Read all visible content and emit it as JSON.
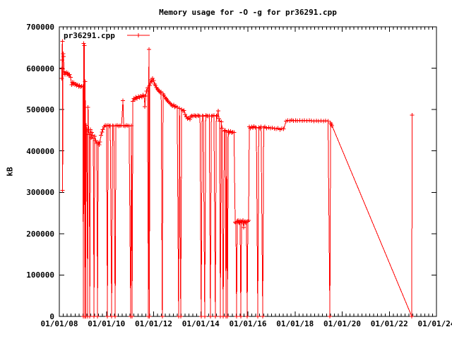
{
  "title": "Memory usage for -O -g for pr36291.cpp",
  "legend": {
    "label": "pr36291.cpp"
  },
  "y_axis": {
    "label": "kB",
    "tick_labels": [
      "0",
      "100000",
      "200000",
      "300000",
      "400000",
      "500000",
      "600000",
      "700000"
    ]
  },
  "x_axis": {
    "tick_labels": [
      "01/01/08",
      "01/01/10",
      "01/01/12",
      "01/01/14",
      "01/01/16",
      "01/01/18",
      "01/01/20",
      "01/01/22",
      "01/01/24"
    ]
  },
  "colors": {
    "series": "#ff0000",
    "axis": "#000000",
    "background": "#ffffff",
    "text": "#000000"
  },
  "chart_data": {
    "type": "line",
    "title": "Memory usage for -O -g for pr36291.cpp",
    "xlabel": "",
    "ylabel": "kB",
    "x_unit": "decimal_year",
    "xlim": [
      2008,
      2024
    ],
    "ylim": [
      0,
      700000
    ],
    "grid": false,
    "legend_position": "top-left",
    "marker": "plus",
    "series": [
      {
        "name": "pr36291.cpp",
        "color": "#ff0000",
        "points": [
          [
            2008.1,
            575000
          ],
          [
            2008.11,
            598000
          ],
          [
            2008.12,
            620000
          ],
          [
            2008.13,
            665000
          ],
          [
            2008.14,
            305000
          ],
          [
            2008.15,
            598000
          ],
          [
            2008.16,
            635000
          ],
          [
            2008.18,
            628000
          ],
          [
            2008.2,
            592000
          ],
          [
            2008.22,
            588000
          ],
          [
            2008.24,
            585000
          ],
          [
            2008.3,
            590000
          ],
          [
            2008.33,
            585000
          ],
          [
            2008.36,
            588000
          ],
          [
            2008.4,
            582000
          ],
          [
            2008.44,
            585000
          ],
          [
            2008.48,
            578000
          ],
          [
            2008.52,
            560000
          ],
          [
            2008.55,
            566000
          ],
          [
            2008.58,
            562000
          ],
          [
            2008.62,
            565000
          ],
          [
            2008.66,
            560000
          ],
          [
            2008.7,
            562000
          ],
          [
            2008.74,
            558000
          ],
          [
            2008.78,
            560000
          ],
          [
            2008.82,
            556000
          ],
          [
            2008.86,
            558000
          ],
          [
            2008.9,
            555000
          ],
          [
            2008.95,
            557000
          ],
          [
            2009.0,
            556000
          ],
          [
            2009.02,
            0
          ],
          [
            2009.04,
            660000
          ],
          [
            2009.06,
            655000
          ],
          [
            2009.08,
            0
          ],
          [
            2009.1,
            568000
          ],
          [
            2009.12,
            0
          ],
          [
            2009.14,
            462000
          ],
          [
            2009.17,
            452000
          ],
          [
            2009.2,
            0
          ],
          [
            2009.22,
            505000
          ],
          [
            2009.24,
            448000
          ],
          [
            2009.27,
            440000
          ],
          [
            2009.29,
            0
          ],
          [
            2009.32,
            452000
          ],
          [
            2009.35,
            432000
          ],
          [
            2009.38,
            445000
          ],
          [
            2009.41,
            438000
          ],
          [
            2009.44,
            430000
          ],
          [
            2009.47,
            0
          ],
          [
            2009.5,
            435000
          ],
          [
            2009.55,
            425000
          ],
          [
            2009.59,
            418000
          ],
          [
            2009.62,
            0
          ],
          [
            2009.65,
            420000
          ],
          [
            2009.69,
            415000
          ],
          [
            2009.72,
            422000
          ],
          [
            2009.77,
            438000
          ],
          [
            2009.81,
            446000
          ],
          [
            2009.85,
            452000
          ],
          [
            2009.9,
            458000
          ],
          [
            2009.95,
            462000
          ],
          [
            2010.0,
            461000
          ],
          [
            2010.04,
            0
          ],
          [
            2010.07,
            462000
          ],
          [
            2010.12,
            460000
          ],
          [
            2010.16,
            461000
          ],
          [
            2010.22,
            0
          ],
          [
            2010.26,
            461000
          ],
          [
            2010.31,
            460000
          ],
          [
            2010.37,
            0
          ],
          [
            2010.4,
            461000
          ],
          [
            2010.46,
            462000
          ],
          [
            2010.52,
            460000
          ],
          [
            2010.58,
            461000
          ],
          [
            2010.64,
            462000
          ],
          [
            2010.7,
            522000
          ],
          [
            2010.73,
            461000
          ],
          [
            2010.78,
            460000
          ],
          [
            2010.84,
            462000
          ],
          [
            2010.9,
            461000
          ],
          [
            2010.96,
            460000
          ],
          [
            2011.03,
            0
          ],
          [
            2011.06,
            461000
          ],
          [
            2011.09,
            0
          ],
          [
            2011.12,
            520000
          ],
          [
            2011.16,
            527000
          ],
          [
            2011.2,
            524000
          ],
          [
            2011.25,
            530000
          ],
          [
            2011.3,
            527000
          ],
          [
            2011.35,
            532000
          ],
          [
            2011.4,
            529000
          ],
          [
            2011.45,
            533000
          ],
          [
            2011.5,
            530000
          ],
          [
            2011.55,
            535000
          ],
          [
            2011.6,
            532000
          ],
          [
            2011.63,
            507000
          ],
          [
            2011.66,
            533000
          ],
          [
            2011.7,
            545000
          ],
          [
            2011.74,
            552000
          ],
          [
            2011.78,
            0
          ],
          [
            2011.8,
            645000
          ],
          [
            2011.82,
            0
          ],
          [
            2011.84,
            558000
          ],
          [
            2011.87,
            565000
          ],
          [
            2011.9,
            572000
          ],
          [
            2011.93,
            568000
          ],
          [
            2011.96,
            575000
          ],
          [
            2012.0,
            570000
          ],
          [
            2012.04,
            562000
          ],
          [
            2012.08,
            558000
          ],
          [
            2012.12,
            553000
          ],
          [
            2012.16,
            550000
          ],
          [
            2012.2,
            547000
          ],
          [
            2012.24,
            544000
          ],
          [
            2012.28,
            541000
          ],
          [
            2012.32,
            543000
          ],
          [
            2012.37,
            0
          ],
          [
            2012.4,
            538000
          ],
          [
            2012.44,
            534000
          ],
          [
            2012.48,
            530000
          ],
          [
            2012.52,
            527000
          ],
          [
            2012.56,
            524000
          ],
          [
            2012.6,
            521000
          ],
          [
            2012.65,
            518000
          ],
          [
            2012.7,
            515000
          ],
          [
            2012.75,
            512000
          ],
          [
            2012.8,
            509000
          ],
          [
            2012.85,
            511000
          ],
          [
            2012.9,
            506000
          ],
          [
            2012.95,
            508000
          ],
          [
            2013.0,
            505000
          ],
          [
            2013.06,
            0
          ],
          [
            2013.1,
            503000
          ],
          [
            2013.15,
            0
          ],
          [
            2013.19,
            500000
          ],
          [
            2013.24,
            497000
          ],
          [
            2013.29,
            498000
          ],
          [
            2013.34,
            488000
          ],
          [
            2013.39,
            482000
          ],
          [
            2013.44,
            478000
          ],
          [
            2013.49,
            480000
          ],
          [
            2013.54,
            476000
          ],
          [
            2013.58,
            483000
          ],
          [
            2013.62,
            485000
          ],
          [
            2013.67,
            484000
          ],
          [
            2013.72,
            486000
          ],
          [
            2013.77,
            485000
          ],
          [
            2013.82,
            484000
          ],
          [
            2013.87,
            486000
          ],
          [
            2013.92,
            485000
          ],
          [
            2013.97,
            484000
          ],
          [
            2014.02,
            0
          ],
          [
            2014.06,
            485000
          ],
          [
            2014.11,
            484000
          ],
          [
            2014.17,
            0
          ],
          [
            2014.21,
            486000
          ],
          [
            2014.26,
            485000
          ],
          [
            2014.31,
            484000
          ],
          [
            2014.36,
            485000
          ],
          [
            2014.41,
            0
          ],
          [
            2014.45,
            484000
          ],
          [
            2014.5,
            485000
          ],
          [
            2014.56,
            486000
          ],
          [
            2014.62,
            0
          ],
          [
            2014.66,
            485000
          ],
          [
            2014.7,
            484000
          ],
          [
            2014.74,
            497000
          ],
          [
            2014.77,
            478000
          ],
          [
            2014.8,
            472000
          ],
          [
            2014.83,
            0
          ],
          [
            2014.87,
            470000
          ],
          [
            2014.9,
            455000
          ],
          [
            2014.95,
            0
          ],
          [
            2015.0,
            448000
          ],
          [
            2015.04,
            450000
          ],
          [
            2015.07,
            0
          ],
          [
            2015.1,
            446000
          ],
          [
            2015.13,
            0
          ],
          [
            2015.17,
            448000
          ],
          [
            2015.21,
            445000
          ],
          [
            2015.26,
            447000
          ],
          [
            2015.31,
            444000
          ],
          [
            2015.36,
            446000
          ],
          [
            2015.41,
            445000
          ],
          [
            2015.46,
            228000
          ],
          [
            2015.49,
            225000
          ],
          [
            2015.52,
            0
          ],
          [
            2015.55,
            230000
          ],
          [
            2015.58,
            232000
          ],
          [
            2015.61,
            228000
          ],
          [
            2015.64,
            226000
          ],
          [
            2015.67,
            231000
          ],
          [
            2015.7,
            0
          ],
          [
            2015.73,
            230000
          ],
          [
            2015.76,
            228000
          ],
          [
            2015.79,
            232000
          ],
          [
            2015.82,
            215000
          ],
          [
            2015.85,
            228000
          ],
          [
            2015.88,
            230000
          ],
          [
            2015.91,
            226000
          ],
          [
            2015.94,
            229000
          ],
          [
            2015.97,
            0
          ],
          [
            2016.0,
            230000
          ],
          [
            2016.03,
            232000
          ],
          [
            2016.06,
            458000
          ],
          [
            2016.11,
            455000
          ],
          [
            2016.16,
            458000
          ],
          [
            2016.21,
            456000
          ],
          [
            2016.26,
            459000
          ],
          [
            2016.31,
            457000
          ],
          [
            2016.36,
            456000
          ],
          [
            2016.42,
            0
          ],
          [
            2016.46,
            457000
          ],
          [
            2016.51,
            455000
          ],
          [
            2016.56,
            458000
          ],
          [
            2016.63,
            0
          ],
          [
            2016.67,
            456000
          ],
          [
            2016.72,
            458000
          ],
          [
            2016.8,
            455000
          ],
          [
            2016.88,
            457000
          ],
          [
            2016.96,
            455000
          ],
          [
            2017.04,
            456000
          ],
          [
            2017.12,
            454000
          ],
          [
            2017.2,
            453000
          ],
          [
            2017.28,
            455000
          ],
          [
            2017.36,
            452000
          ],
          [
            2017.44,
            454000
          ],
          [
            2017.52,
            453000
          ],
          [
            2017.62,
            472000
          ],
          [
            2017.7,
            474000
          ],
          [
            2017.78,
            473000
          ],
          [
            2017.86,
            475000
          ],
          [
            2017.94,
            473000
          ],
          [
            2018.02,
            474000
          ],
          [
            2018.1,
            473000
          ],
          [
            2018.2,
            474000
          ],
          [
            2018.3,
            473000
          ],
          [
            2018.4,
            474000
          ],
          [
            2018.5,
            473000
          ],
          [
            2018.6,
            474000
          ],
          [
            2018.7,
            473000
          ],
          [
            2018.8,
            472000
          ],
          [
            2018.9,
            473000
          ],
          [
            2019.0,
            472000
          ],
          [
            2019.1,
            473000
          ],
          [
            2019.2,
            472000
          ],
          [
            2019.3,
            473000
          ],
          [
            2019.4,
            472000
          ],
          [
            2019.48,
            0
          ],
          [
            2019.51,
            468000
          ],
          [
            2019.54,
            464000
          ],
          [
            2019.57,
            461000
          ],
          [
            2022.95,
            0
          ],
          [
            2022.97,
            487000
          ]
        ]
      }
    ]
  }
}
